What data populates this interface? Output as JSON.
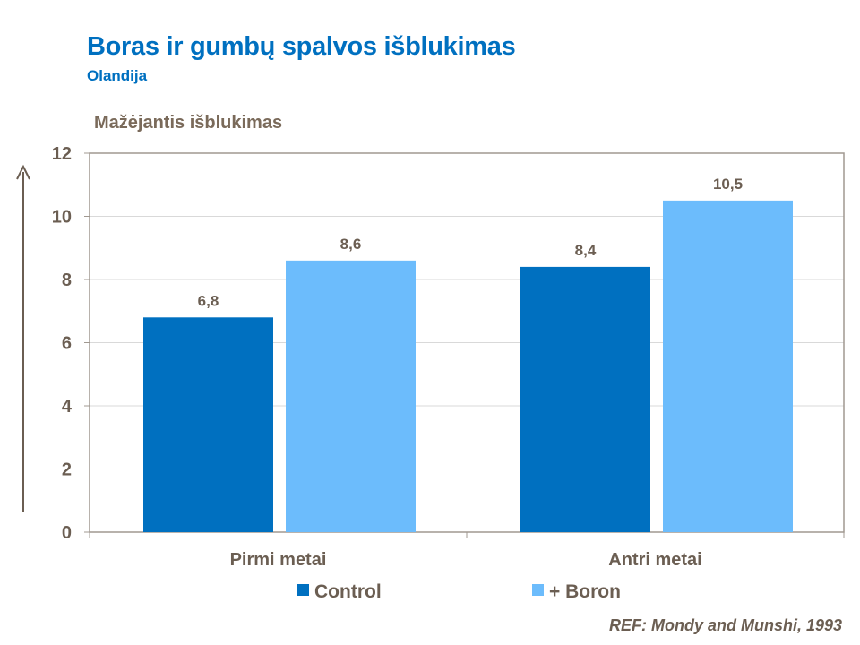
{
  "chart_data": {
    "type": "bar",
    "title": "Boras ir gumbų spalvos išblukimas",
    "subtitle": "Olandija",
    "ylabel": "Mažėjantis išblukimas",
    "xlabel": "",
    "categories": [
      "Pirmi metai",
      "Antri metai"
    ],
    "series": [
      {
        "name": "Control",
        "values": [
          6.8,
          8.4
        ],
        "labels": [
          "6,8",
          "8,4"
        ],
        "color": "#0070c0"
      },
      {
        "name": "+ Boron",
        "values": [
          8.6,
          10.5
        ],
        "labels": [
          "8,6",
          "10,5"
        ],
        "color": "#6cbcfc"
      }
    ],
    "ylim": [
      0,
      12
    ],
    "yticks": [
      "0",
      "2",
      "4",
      "6",
      "8",
      "10",
      "12"
    ],
    "grid": true,
    "legend_position": "bottom"
  },
  "reference": "REF: Mondy and Munshi, 1993"
}
